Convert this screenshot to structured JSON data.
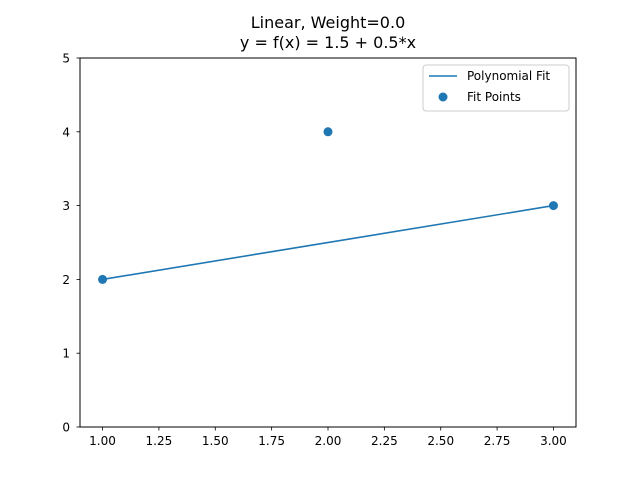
{
  "chart_data": {
    "type": "line",
    "title": "Linear, Weight=0.0",
    "subtitle": "y = f(x) = 1.5 + 0.5*x",
    "xlim": [
      0.9,
      3.1
    ],
    "ylim": [
      0,
      5
    ],
    "x_ticks": [
      1.0,
      1.25,
      1.5,
      1.75,
      2.0,
      2.25,
      2.5,
      2.75,
      3.0
    ],
    "x_tick_labels": [
      "1.00",
      "1.25",
      "1.50",
      "1.75",
      "2.00",
      "2.25",
      "2.50",
      "2.75",
      "3.00"
    ],
    "y_ticks": [
      0,
      1,
      2,
      3,
      4,
      5
    ],
    "y_tick_labels": [
      "0",
      "1",
      "2",
      "3",
      "4",
      "5"
    ],
    "grid": false,
    "legend_position": "top-right",
    "series": [
      {
        "name": "Polynomial Fit",
        "kind": "line",
        "color": "#1f77b4",
        "x": [
          1.0,
          3.0
        ],
        "y": [
          2.0,
          3.0
        ]
      },
      {
        "name": "Fit Points",
        "kind": "scatter",
        "color": "#1f77b4",
        "x": [
          1.0,
          2.0,
          3.0
        ],
        "y": [
          2.0,
          4.0,
          3.0
        ]
      }
    ]
  }
}
